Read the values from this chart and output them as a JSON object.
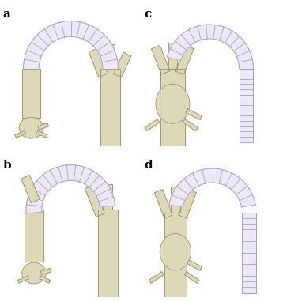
{
  "background_color": "#ffffff",
  "labels": [
    "a",
    "b",
    "c",
    "d"
  ],
  "label_fontsize": 11,
  "aorta_color": "#ddd8b8",
  "aorta_edge": "#9a9070",
  "aorta_edge2": "#b0a880",
  "graft_fill": "#ede8f5",
  "graft_edge": "#a8a0c0",
  "graft_ring_color": "#b8b0d0",
  "n_rings_arc": 16,
  "n_rings_straight": 12
}
